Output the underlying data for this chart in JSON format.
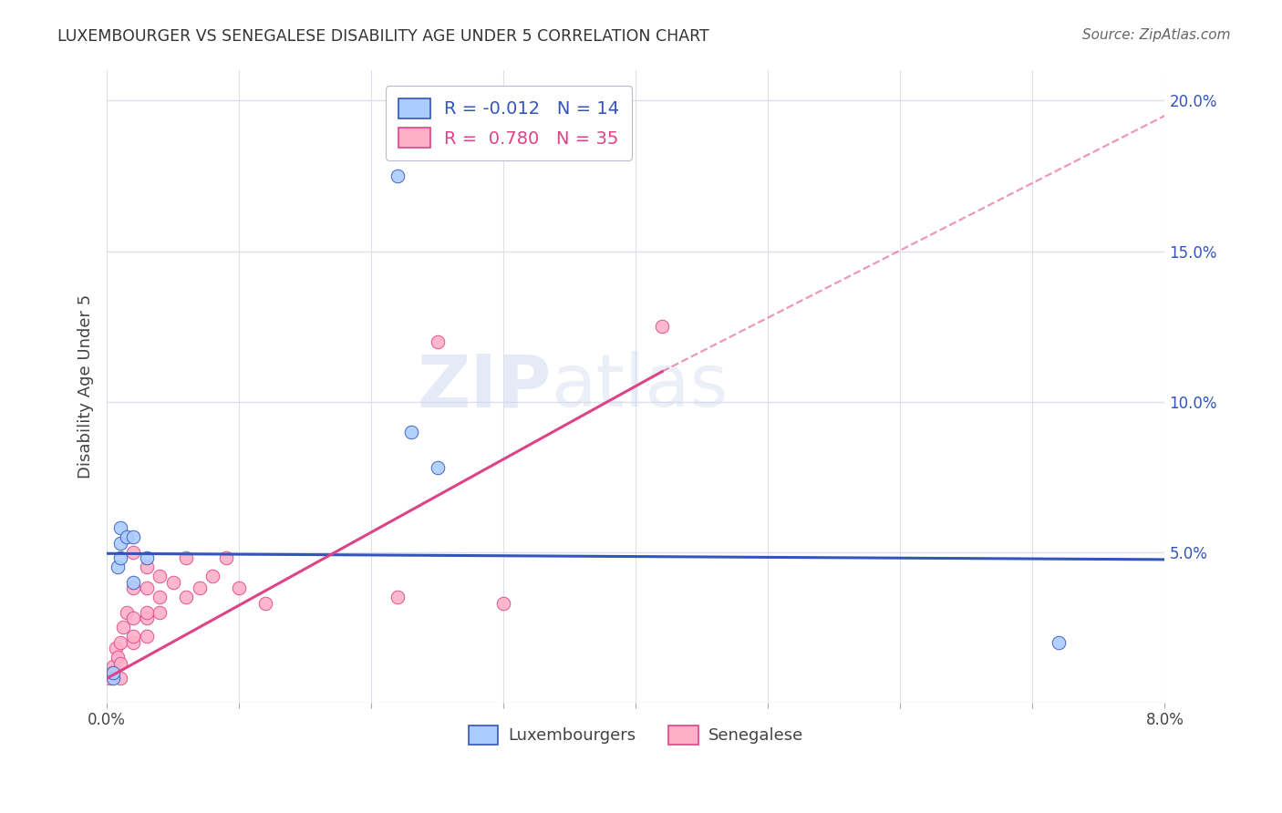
{
  "title": "LUXEMBOURGER VS SENEGALESE DISABILITY AGE UNDER 5 CORRELATION CHART",
  "source": "Source: ZipAtlas.com",
  "ylabel": "Disability Age Under 5",
  "xlim": [
    0.0,
    0.08
  ],
  "ylim": [
    0.0,
    0.21
  ],
  "xticks": [
    0.0,
    0.01,
    0.02,
    0.03,
    0.04,
    0.05,
    0.06,
    0.07,
    0.08
  ],
  "xtick_labels": [
    "0.0%",
    "",
    "",
    "",
    "",
    "",
    "",
    "",
    "8.0%"
  ],
  "yticks": [
    0.0,
    0.05,
    0.1,
    0.15,
    0.2
  ],
  "ytick_labels": [
    "",
    "5.0%",
    "10.0%",
    "15.0%",
    "20.0%"
  ],
  "background_color": "#ffffff",
  "grid_color": "#dde0e8",
  "luxembourger_color": "#aaccff",
  "senegalese_color": "#ffb0c8",
  "luxembourger_R": -0.012,
  "luxembourger_N": 14,
  "senegalese_R": 0.78,
  "senegalese_N": 35,
  "legend_luxembourgers": "Luxembourgers",
  "legend_senegalese": "Senegalese",
  "luxembourger_scatter_x": [
    0.0005,
    0.0005,
    0.0008,
    0.001,
    0.001,
    0.001,
    0.0015,
    0.002,
    0.002,
    0.003,
    0.022,
    0.023,
    0.025,
    0.072
  ],
  "luxembourger_scatter_y": [
    0.008,
    0.01,
    0.045,
    0.048,
    0.053,
    0.058,
    0.055,
    0.04,
    0.055,
    0.048,
    0.175,
    0.09,
    0.078,
    0.02
  ],
  "senegalese_scatter_x": [
    0.0002,
    0.0003,
    0.0005,
    0.0007,
    0.0008,
    0.001,
    0.001,
    0.001,
    0.0012,
    0.0015,
    0.002,
    0.002,
    0.002,
    0.002,
    0.002,
    0.003,
    0.003,
    0.003,
    0.003,
    0.003,
    0.004,
    0.004,
    0.004,
    0.005,
    0.006,
    0.006,
    0.007,
    0.008,
    0.009,
    0.01,
    0.012,
    0.022,
    0.025,
    0.03,
    0.042
  ],
  "senegalese_scatter_y": [
    0.008,
    0.01,
    0.012,
    0.018,
    0.015,
    0.008,
    0.013,
    0.02,
    0.025,
    0.03,
    0.02,
    0.022,
    0.028,
    0.038,
    0.05,
    0.022,
    0.028,
    0.03,
    0.038,
    0.045,
    0.03,
    0.035,
    0.042,
    0.04,
    0.048,
    0.035,
    0.038,
    0.042,
    0.048,
    0.038,
    0.033,
    0.035,
    0.12,
    0.033,
    0.125
  ],
  "luxembourger_trendline_color": "#3355bb",
  "senegalese_trendline_color": "#dd4488",
  "lux_trend_x0": 0.0,
  "lux_trend_y0": 0.0495,
  "lux_trend_x1": 0.08,
  "lux_trend_y1": 0.0475,
  "sen_trend_solid_x0": 0.0,
  "sen_trend_solid_y0": 0.008,
  "sen_trend_solid_x1": 0.042,
  "sen_trend_solid_y1": 0.11,
  "sen_trend_dash_x0": 0.042,
  "sen_trend_dash_y0": 0.11,
  "sen_trend_dash_x1": 0.08,
  "sen_trend_dash_y1": 0.195,
  "watermark_line1": "ZIP",
  "watermark_line2": "atlas",
  "marker_size": 110
}
